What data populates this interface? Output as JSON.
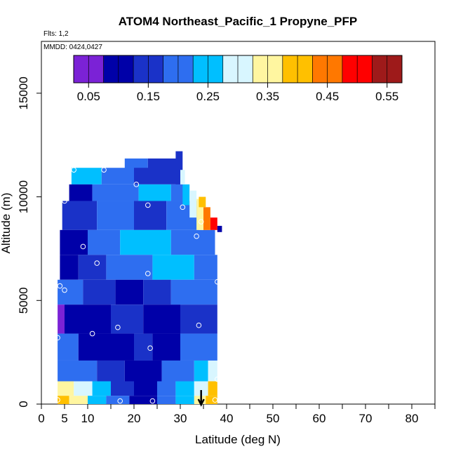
{
  "chart_data": {
    "type": "heatmap",
    "title": "ATOM4 Northeast_Pacific_1 Propyne_PFP",
    "subtitle_flights": "Flts: 1,2",
    "subtitle_dates": "MMDD: 0424,0427",
    "xlabel": "Latitude (deg N)",
    "ylabel": "Altitude (m)",
    "xlim": [
      0,
      85
    ],
    "ylim": [
      0,
      17500
    ],
    "x_ticks": [
      0,
      5,
      10,
      20,
      30,
      40,
      50,
      60,
      70,
      80
    ],
    "x_minor_ticks": [
      0,
      5,
      10,
      15,
      20,
      25,
      30,
      35,
      40,
      45,
      50,
      55,
      60,
      65,
      70,
      75,
      80,
      85
    ],
    "y_ticks": [
      0,
      5000,
      10000,
      15000
    ],
    "colorbar": {
      "ticks": [
        0.05,
        0.15,
        0.25,
        0.35,
        0.45,
        0.55
      ],
      "range": [
        0.025,
        0.575
      ],
      "n_bins": 11,
      "colors": [
        "#7b22d6",
        "#0000a8",
        "#1a32c8",
        "#2e6ef0",
        "#00bfff",
        "#d8f6ff",
        "#fff6a0",
        "#ffc000",
        "#ff7800",
        "#ff0000",
        "#9e1a1a"
      ]
    },
    "arrow_latitude": 34.5,
    "colors": {
      "purple": "#7b22d6",
      "navy": "#0000a8",
      "darkblue": "#1a32c8",
      "blue": "#2e6ef0",
      "skyblue": "#00bfff",
      "paleblue": "#d8f6ff",
      "paleyellow": "#fff6a0",
      "yellow": "#ffc000",
      "orange": "#ff7800",
      "red": "#ff0000",
      "darkred": "#9e1a1a"
    },
    "field_bands": [
      {
        "y0": 11000,
        "y1": 11850,
        "x0": 18,
        "x1": 29.5,
        "segments": [
          {
            "x": 18,
            "c": "blue"
          },
          {
            "x": 23,
            "c": "darkblue"
          }
        ]
      },
      {
        "y0": 10600,
        "y1": 11400,
        "x0": 6.5,
        "x1": 30,
        "segments": [
          {
            "x": 6.5,
            "c": "skyblue"
          },
          {
            "x": 13,
            "c": "blue"
          },
          {
            "x": 20,
            "c": "darkblue"
          }
        ]
      },
      {
        "y0": 9800,
        "y1": 10600,
        "x0": 6,
        "x1": 31,
        "segments": [
          {
            "x": 6,
            "c": "navy"
          },
          {
            "x": 11,
            "c": "blue"
          },
          {
            "x": 21,
            "c": "skyblue"
          },
          {
            "x": 28,
            "c": "blue"
          }
        ]
      },
      {
        "y0": 8400,
        "y1": 9800,
        "x0": 4.5,
        "x1": 34,
        "segments": [
          {
            "x": 4.5,
            "c": "darkblue"
          },
          {
            "x": 12,
            "c": "blue"
          },
          {
            "x": 20,
            "c": "darkblue"
          },
          {
            "x": 27,
            "c": "blue"
          }
        ]
      },
      {
        "y0": 7200,
        "y1": 8400,
        "x0": 4,
        "x1": 37.5,
        "segments": [
          {
            "x": 4,
            "c": "navy"
          },
          {
            "x": 10,
            "c": "blue"
          },
          {
            "x": 17,
            "c": "skyblue"
          },
          {
            "x": 28,
            "c": "blue"
          }
        ]
      },
      {
        "y0": 6000,
        "y1": 7200,
        "x0": 4,
        "x1": 38,
        "segments": [
          {
            "x": 4,
            "c": "navy"
          },
          {
            "x": 8,
            "c": "darkblue"
          },
          {
            "x": 14,
            "c": "blue"
          },
          {
            "x": 24,
            "c": "skyblue"
          },
          {
            "x": 33,
            "c": "blue"
          }
        ]
      },
      {
        "y0": 4800,
        "y1": 6000,
        "x0": 3.5,
        "x1": 38,
        "segments": [
          {
            "x": 3.5,
            "c": "blue"
          },
          {
            "x": 9,
            "c": "darkblue"
          },
          {
            "x": 16,
            "c": "navy"
          },
          {
            "x": 22,
            "c": "darkblue"
          },
          {
            "x": 28,
            "c": "blue"
          }
        ]
      },
      {
        "y0": 3400,
        "y1": 4800,
        "x0": 3.5,
        "x1": 38,
        "segments": [
          {
            "x": 3.5,
            "c": "purple"
          },
          {
            "x": 5,
            "c": "navy"
          },
          {
            "x": 15,
            "c": "darkblue"
          },
          {
            "x": 22,
            "c": "navy"
          },
          {
            "x": 30,
            "c": "darkblue"
          }
        ]
      },
      {
        "y0": 2100,
        "y1": 3400,
        "x0": 3.5,
        "x1": 38,
        "segments": [
          {
            "x": 3.5,
            "c": "blue"
          },
          {
            "x": 8,
            "c": "navy"
          },
          {
            "x": 20,
            "c": "darkblue"
          },
          {
            "x": 24,
            "c": "navy"
          },
          {
            "x": 30,
            "c": "blue"
          }
        ]
      },
      {
        "y0": 1100,
        "y1": 2100,
        "x0": 3.5,
        "x1": 38,
        "segments": [
          {
            "x": 3.5,
            "c": "blue"
          },
          {
            "x": 12,
            "c": "darkblue"
          },
          {
            "x": 18,
            "c": "navy"
          },
          {
            "x": 26,
            "c": "blue"
          },
          {
            "x": 33,
            "c": "skyblue"
          },
          {
            "x": 36,
            "c": "paleblue"
          }
        ]
      },
      {
        "y0": 400,
        "y1": 1100,
        "x0": 3.5,
        "x1": 38,
        "segments": [
          {
            "x": 3.5,
            "c": "paleyellow"
          },
          {
            "x": 7,
            "c": "paleblue"
          },
          {
            "x": 11,
            "c": "skyblue"
          },
          {
            "x": 15,
            "c": "darkblue"
          },
          {
            "x": 20,
            "c": "navy"
          },
          {
            "x": 25,
            "c": "blue"
          },
          {
            "x": 29,
            "c": "skyblue"
          },
          {
            "x": 33,
            "c": "paleblue"
          },
          {
            "x": 36,
            "c": "yellow"
          }
        ]
      },
      {
        "y0": 0,
        "y1": 400,
        "x0": 3.5,
        "x1": 38,
        "segments": [
          {
            "x": 3.5,
            "c": "yellow"
          },
          {
            "x": 6,
            "c": "paleyellow"
          },
          {
            "x": 10,
            "c": "skyblue"
          },
          {
            "x": 14,
            "c": "blue"
          },
          {
            "x": 19,
            "c": "navy"
          },
          {
            "x": 25,
            "c": "blue"
          },
          {
            "x": 29,
            "c": "skyblue"
          },
          {
            "x": 33,
            "c": "paleyellow"
          },
          {
            "x": 35.5,
            "c": "yellow"
          }
        ]
      }
    ],
    "field_patches": [
      {
        "x0": 29,
        "x1": 30.5,
        "y0": 10600,
        "y1": 12200,
        "c": "darkblue"
      },
      {
        "x0": 30.5,
        "x1": 32,
        "y0": 9600,
        "y1": 10600,
        "c": "skyblue"
      },
      {
        "x0": 32,
        "x1": 33.5,
        "y0": 9000,
        "y1": 10300,
        "c": "paleblue"
      },
      {
        "x0": 33.5,
        "x1": 35,
        "y0": 8400,
        "y1": 9900,
        "c": "paleyellow"
      },
      {
        "x0": 35,
        "x1": 36.5,
        "y0": 8400,
        "y1": 9500,
        "c": "orange"
      },
      {
        "x0": 36.5,
        "x1": 38,
        "y0": 8400,
        "y1": 9000,
        "c": "red"
      },
      {
        "x0": 38,
        "x1": 39,
        "y0": 8300,
        "y1": 8600,
        "c": "navy"
      },
      {
        "x0": 34,
        "x1": 35.5,
        "y0": 9500,
        "y1": 10000,
        "c": "yellow"
      },
      {
        "x0": 30,
        "x1": 31,
        "y0": 10600,
        "y1": 11300,
        "c": "paleblue"
      }
    ],
    "sample_points": [
      {
        "lat": 7,
        "alt": 11300
      },
      {
        "lat": 13.5,
        "alt": 11300
      },
      {
        "lat": 20.5,
        "alt": 10600
      },
      {
        "lat": 5,
        "alt": 9800
      },
      {
        "lat": 23,
        "alt": 9600
      },
      {
        "lat": 30.5,
        "alt": 9500
      },
      {
        "lat": 34.5,
        "alt": 8800
      },
      {
        "lat": 33.5,
        "alt": 8100
      },
      {
        "lat": 9,
        "alt": 7600
      },
      {
        "lat": 12,
        "alt": 6800
      },
      {
        "lat": 23,
        "alt": 6300
      },
      {
        "lat": 38,
        "alt": 5900
      },
      {
        "lat": 4,
        "alt": 5700
      },
      {
        "lat": 5,
        "alt": 5500
      },
      {
        "lat": 16.5,
        "alt": 3700
      },
      {
        "lat": 34,
        "alt": 3800
      },
      {
        "lat": 11,
        "alt": 3400
      },
      {
        "lat": 3.5,
        "alt": 3200
      },
      {
        "lat": 23.5,
        "alt": 2700
      },
      {
        "lat": 38,
        "alt": 1200
      },
      {
        "lat": 3.5,
        "alt": 200
      },
      {
        "lat": 17,
        "alt": 150
      },
      {
        "lat": 24,
        "alt": 150
      },
      {
        "lat": 37.5,
        "alt": 200
      }
    ]
  }
}
